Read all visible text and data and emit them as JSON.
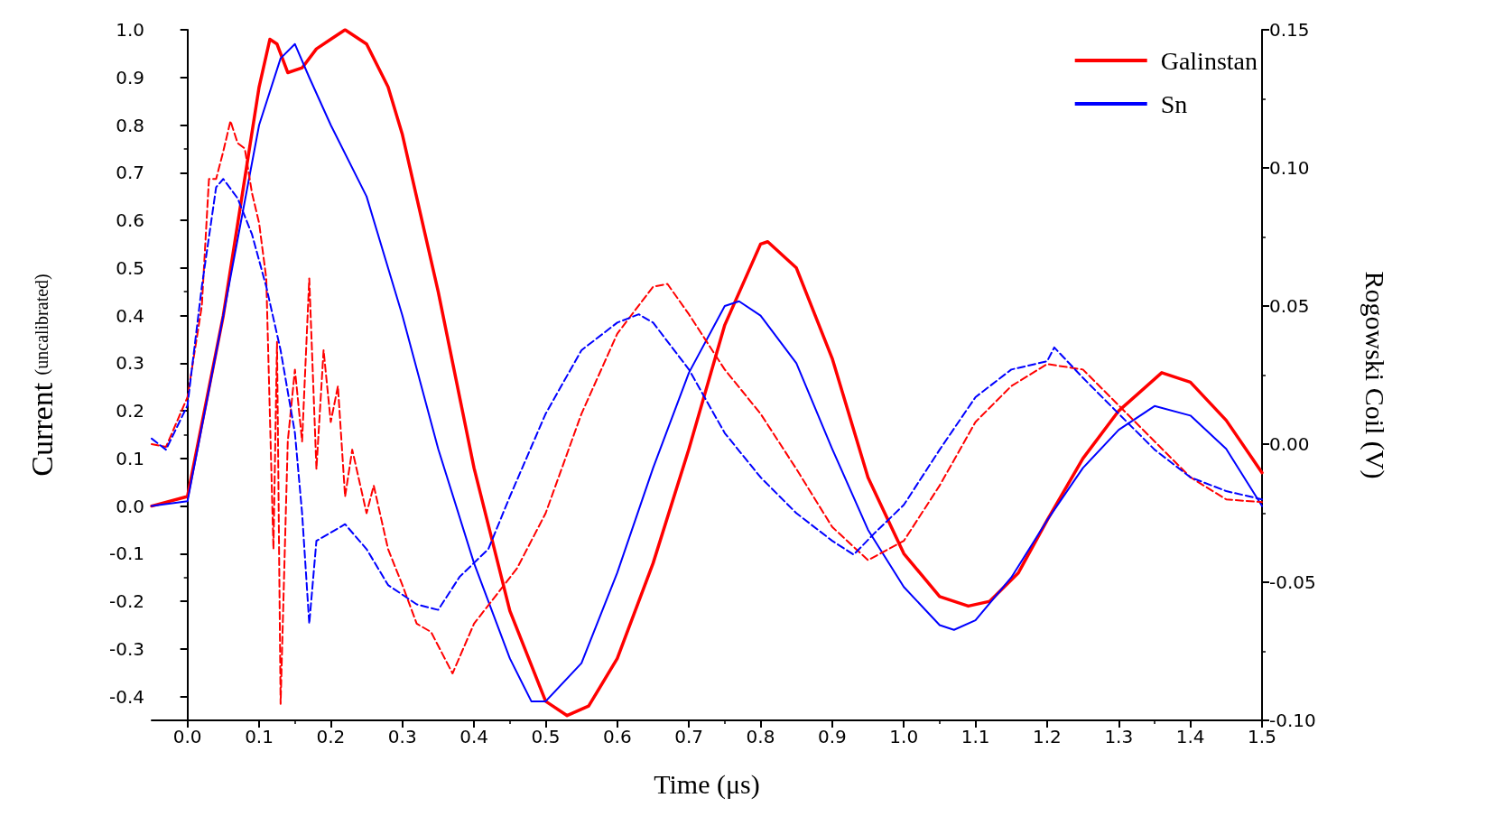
{
  "chart_data": {
    "type": "line",
    "xlabel": "Time (μs)",
    "ylabel": "Current (uncalibrated)",
    "y2label": "Rogowski Coil (V)",
    "grid": false,
    "legend": "top right",
    "marker": "none",
    "xlim": [
      -0.05,
      1.5
    ],
    "ylim": [
      -0.45,
      1.0
    ],
    "y2lim": [
      -0.1,
      0.15
    ],
    "xticks": [
      {
        "value": 0,
        "label": "0.0"
      },
      {
        "value": 0.1,
        "label": "0.1"
      },
      {
        "value": 0.2,
        "label": "0.2"
      },
      {
        "value": 0.3,
        "label": "0.3"
      },
      {
        "value": 0.4,
        "label": "0.4"
      },
      {
        "value": 0.5,
        "label": "0.5"
      },
      {
        "value": 0.6,
        "label": "0.6"
      },
      {
        "value": 0.7,
        "label": "0.7"
      },
      {
        "value": 0.8,
        "label": "0.8"
      },
      {
        "value": 0.9,
        "label": "0.9"
      },
      {
        "value": 1.0,
        "label": "1.0"
      },
      {
        "value": 1.1,
        "label": "1.1"
      },
      {
        "value": 1.2,
        "label": "1.2"
      },
      {
        "value": 1.3,
        "label": "1.3"
      },
      {
        "value": 1.4,
        "label": "1.4"
      },
      {
        "value": 1.5,
        "label": "1.5"
      }
    ],
    "yticks": [
      -0.4,
      -0.3,
      -0.2,
      -0.1,
      {
        "value": 0,
        "label": "0.0"
      },
      0.1,
      0.2,
      0.3,
      0.4,
      0.5,
      0.6,
      0.7,
      0.8,
      0.9,
      {
        "value": 1.0,
        "label": "1.0"
      }
    ],
    "y2ticks": [
      {
        "value": -0.1,
        "label": "-0.10"
      },
      -0.05,
      {
        "value": 0,
        "label": "0.00"
      },
      0.05,
      {
        "value": 0.1,
        "label": "0.10"
      },
      0.15
    ],
    "series": [
      {
        "name": "Galinstan",
        "color": "#ff0000",
        "line_style": "solid",
        "x": [
          -0.05,
          0.0,
          0.05,
          0.1,
          0.115,
          0.125,
          0.14,
          0.16,
          0.18,
          0.2,
          0.22,
          0.25,
          0.28,
          0.3,
          0.35,
          0.4,
          0.45,
          0.5,
          0.53,
          0.56,
          0.6,
          0.65,
          0.7,
          0.75,
          0.8,
          0.81,
          0.85,
          0.9,
          0.95,
          1.0,
          1.05,
          1.09,
          1.12,
          1.16,
          1.2,
          1.25,
          1.3,
          1.36,
          1.4,
          1.45,
          1.5
        ],
        "values": [
          0,
          0.02,
          0.4,
          0.88,
          0.98,
          0.97,
          0.91,
          0.92,
          0.96,
          0.98,
          1.0,
          0.97,
          0.88,
          0.78,
          0.45,
          0.08,
          -0.22,
          -0.41,
          -0.44,
          -0.42,
          -0.32,
          -0.12,
          0.12,
          0.38,
          0.55,
          0.555,
          0.5,
          0.31,
          0.06,
          -0.1,
          -0.19,
          -0.21,
          -0.2,
          -0.14,
          -0.03,
          0.1,
          0.2,
          0.28,
          0.26,
          0.18,
          0.07
        ]
      },
      {
        "name": "Sn",
        "color": "#0000ff",
        "line_style": "solid",
        "x": [
          -0.05,
          0.0,
          0.05,
          0.1,
          0.13,
          0.15,
          0.17,
          0.2,
          0.25,
          0.3,
          0.35,
          0.4,
          0.45,
          0.48,
          0.5,
          0.55,
          0.6,
          0.65,
          0.7,
          0.75,
          0.77,
          0.8,
          0.85,
          0.9,
          0.95,
          1.0,
          1.05,
          1.07,
          1.1,
          1.15,
          1.2,
          1.25,
          1.3,
          1.35,
          1.4,
          1.45,
          1.5
        ],
        "values": [
          0,
          0.01,
          0.4,
          0.8,
          0.94,
          0.97,
          0.9,
          0.8,
          0.65,
          0.4,
          0.12,
          -0.12,
          -0.32,
          -0.41,
          -0.41,
          -0.33,
          -0.14,
          0.08,
          0.28,
          0.42,
          0.43,
          0.4,
          0.3,
          0.12,
          -0.05,
          -0.17,
          -0.25,
          -0.26,
          -0.24,
          -0.15,
          -0.03,
          0.08,
          0.16,
          0.21,
          0.19,
          0.12,
          0.0
        ]
      },
      {
        "color": "#ff0000",
        "line_style": "dashed",
        "axis": "y2",
        "x": [
          -0.05,
          -0.03,
          0.0,
          0.02,
          0.03,
          0.04,
          0.05,
          0.06,
          0.07,
          0.08,
          0.09,
          0.1,
          0.11,
          0.12,
          0.125,
          0.13,
          0.14,
          0.15,
          0.16,
          0.17,
          0.18,
          0.19,
          0.2,
          0.21,
          0.22,
          0.23,
          0.25,
          0.26,
          0.28,
          0.3,
          0.32,
          0.34,
          0.37,
          0.4,
          0.43,
          0.46,
          0.5,
          0.55,
          0.6,
          0.65,
          0.67,
          0.7,
          0.75,
          0.8,
          0.85,
          0.9,
          0.95,
          1.0,
          1.05,
          1.1,
          1.15,
          1.2,
          1.25,
          1.3,
          1.35,
          1.4,
          1.45,
          1.5
        ],
        "values": [
          0.0,
          -0.001,
          0.017,
          0.05,
          0.096,
          0.096,
          0.106,
          0.117,
          0.109,
          0.107,
          0.091,
          0.08,
          0.06,
          -0.038,
          0.037,
          -0.094,
          0.001,
          0.027,
          0.001,
          0.06,
          -0.009,
          0.034,
          0.008,
          0.021,
          -0.019,
          -0.002,
          -0.025,
          -0.015,
          -0.038,
          -0.051,
          -0.065,
          -0.068,
          -0.083,
          -0.065,
          -0.055,
          -0.045,
          -0.025,
          0.011,
          0.04,
          0.057,
          0.058,
          0.047,
          0.027,
          0.011,
          -0.009,
          -0.03,
          -0.042,
          -0.035,
          -0.015,
          0.008,
          0.021,
          0.029,
          0.027,
          0.014,
          0.001,
          -0.012,
          -0.02,
          -0.021
        ]
      },
      {
        "color": "#0000ff",
        "line_style": "dashed",
        "axis": "y2",
        "x": [
          -0.05,
          -0.03,
          0.0,
          0.02,
          0.04,
          0.05,
          0.07,
          0.09,
          0.11,
          0.13,
          0.15,
          0.16,
          0.17,
          0.18,
          0.2,
          0.22,
          0.25,
          0.28,
          0.32,
          0.35,
          0.38,
          0.42,
          0.45,
          0.5,
          0.55,
          0.6,
          0.63,
          0.65,
          0.7,
          0.75,
          0.8,
          0.85,
          0.9,
          0.93,
          0.96,
          1.0,
          1.05,
          1.1,
          1.15,
          1.2,
          1.21,
          1.25,
          1.3,
          1.35,
          1.4,
          1.45,
          1.5
        ],
        "values": [
          0.002,
          -0.002,
          0.014,
          0.057,
          0.093,
          0.096,
          0.089,
          0.076,
          0.057,
          0.034,
          0.004,
          -0.025,
          -0.065,
          -0.035,
          -0.032,
          -0.029,
          -0.038,
          -0.051,
          -0.058,
          -0.06,
          -0.048,
          -0.038,
          -0.019,
          0.011,
          0.034,
          0.044,
          0.047,
          0.044,
          0.027,
          0.004,
          -0.012,
          -0.025,
          -0.035,
          -0.04,
          -0.032,
          -0.022,
          -0.002,
          0.017,
          0.027,
          0.03,
          0.035,
          0.024,
          0.011,
          -0.002,
          -0.012,
          -0.017,
          -0.02
        ]
      }
    ]
  }
}
